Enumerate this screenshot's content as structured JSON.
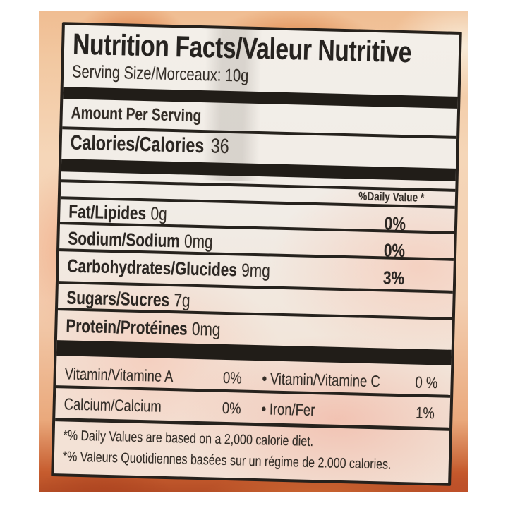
{
  "label": {
    "title": "Nutrition Facts/Valeur Nutritive",
    "serving_size": "Serving Size/Morceaux: 10g",
    "amount_per_serving": "Amount Per Serving",
    "calories_label": "Calories/Calories",
    "calories_value": "36",
    "daily_value_header": "%Daily Value *",
    "bullet": "•",
    "nutrient_rows": [
      {
        "name": "Fat/Lipides",
        "amount": "0g",
        "dv": "0%"
      },
      {
        "name": "Sodium/Sodium",
        "amount": "0mg",
        "dv": "0%"
      },
      {
        "name": "Carbohydrates/Glucides",
        "amount": "9mg",
        "dv": "3%"
      },
      {
        "name": "Sugars/Sucres",
        "amount": "7g",
        "dv": ""
      },
      {
        "name": "Protein/Protéines",
        "amount": "0mg",
        "dv": ""
      }
    ],
    "micronutrient_rows": [
      {
        "left_name": "Vitamin/Vitamine A",
        "left_value": "0%",
        "right_name": "Vitamin/Vitamine C",
        "right_value": "0 %"
      },
      {
        "left_name": "Calcium/Calcium",
        "left_value": "0%",
        "right_name": "Iron/Fer",
        "right_value": "1%"
      }
    ],
    "footnotes": [
      "*% Daily Values are based on a 2,000 calorie diet.",
      "*% Valeurs Quotidiennes basées sur un régime de 2.000 calories."
    ],
    "colors": {
      "text": "#332d27",
      "rule": "#26221d",
      "label_background": "#f2eee9",
      "bag_peach": "#f1c9a4",
      "bag_orange": "#d96f3c"
    }
  }
}
